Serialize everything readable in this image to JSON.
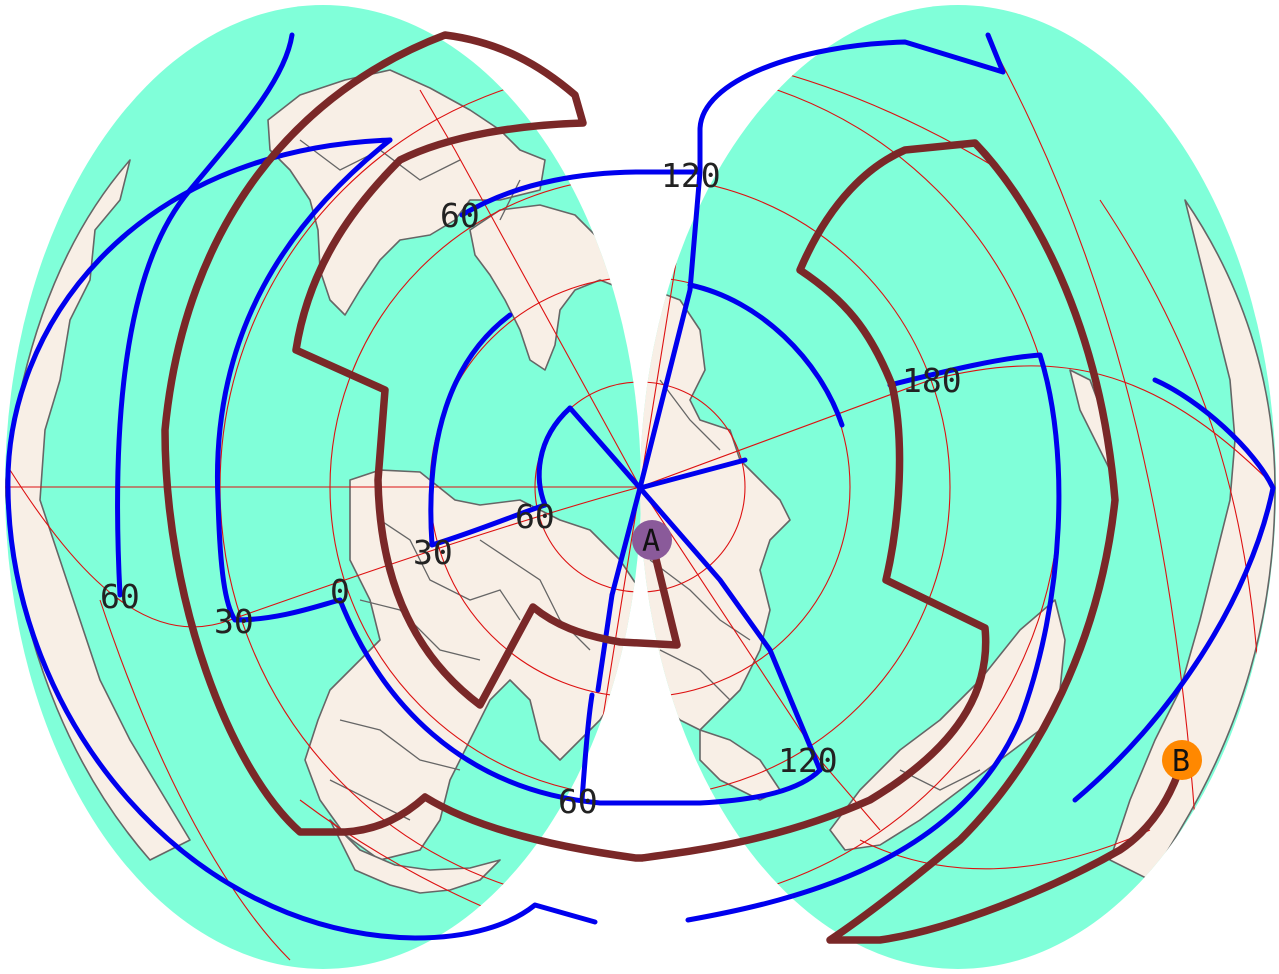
{
  "colors": {
    "ocean": "#80ffd9",
    "land": "#f8efe6",
    "coastline": "#666666",
    "graticule": "#dd1111",
    "grid_lines": "#0000ee",
    "route": "#7a2828",
    "marker_a": "#8a5a9a",
    "marker_b": "#ff8800"
  },
  "graticule_labels": {
    "lon_120_top": "120",
    "lat_60_upper": "60",
    "lon_180": "180",
    "lat_60_center": "60",
    "lat_30_center": "30",
    "lon_0": "0",
    "lat_30_left": "30",
    "lat_60_left": "60",
    "lon_60_bottom": "60",
    "lon_120_bottom": "120"
  },
  "markers": {
    "a": {
      "label": "A"
    },
    "b": {
      "label": "B"
    }
  }
}
